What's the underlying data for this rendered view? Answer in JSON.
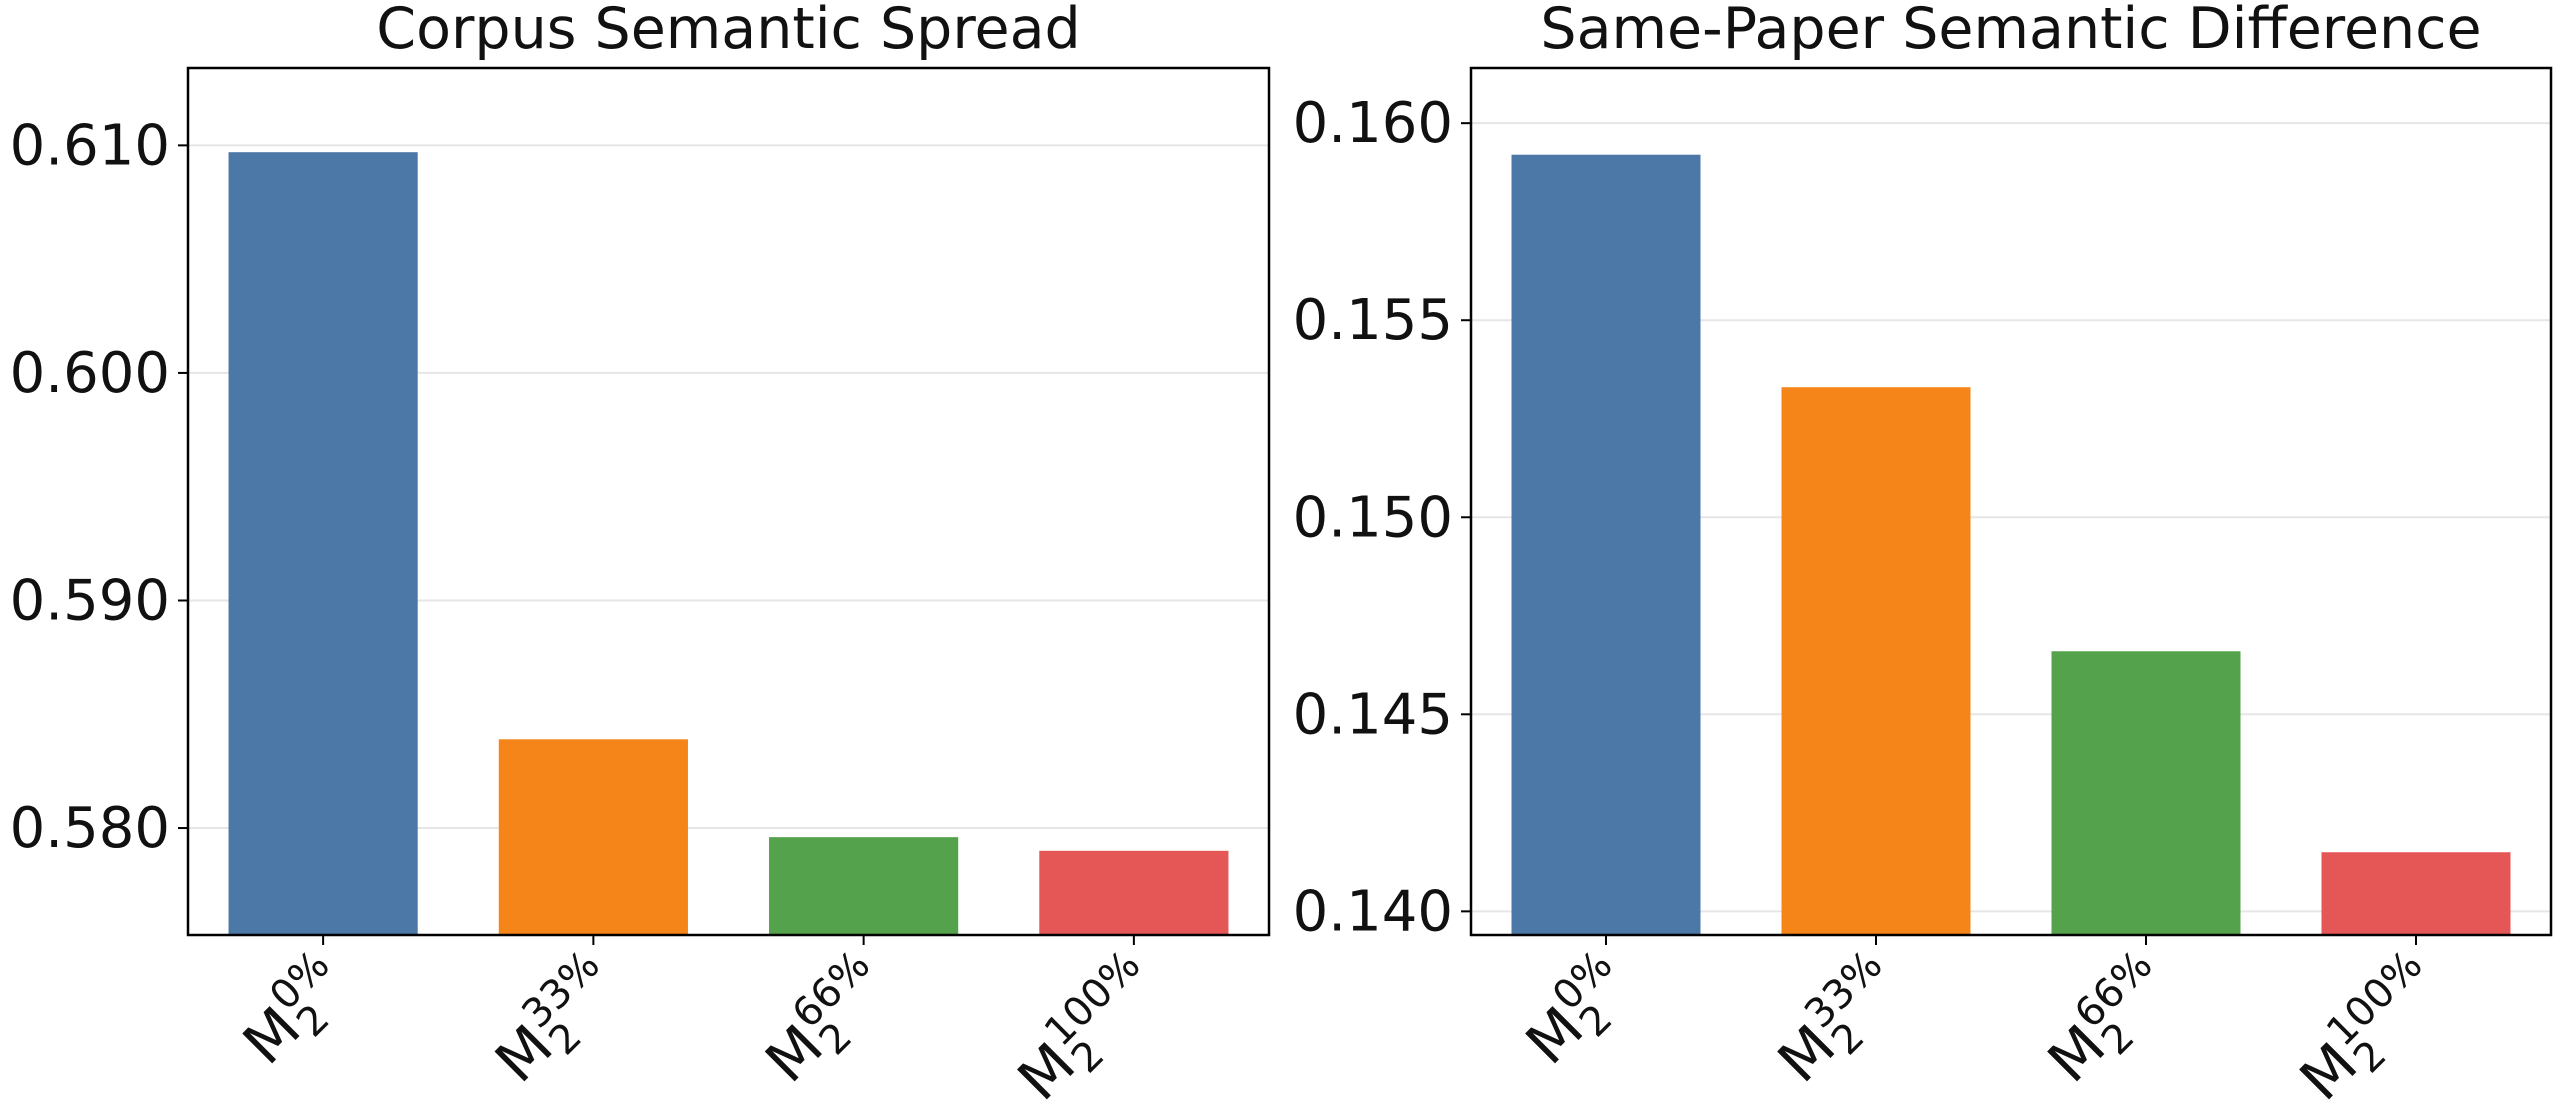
{
  "chart_data": [
    {
      "type": "bar",
      "title": "Corpus Semantic Spread",
      "categories": [
        {
          "base": "M",
          "sub": "2",
          "sup": "0%"
        },
        {
          "base": "M",
          "sub": "2",
          "sup": "33%"
        },
        {
          "base": "M",
          "sub": "2",
          "sup": "66%"
        },
        {
          "base": "M",
          "sub": "2",
          "sup": "100%"
        }
      ],
      "values": [
        0.6097,
        0.5839,
        0.5796,
        0.579
      ],
      "colors": [
        "#4c78a8",
        "#f58518",
        "#54a24b",
        "#e45756"
      ],
      "ylim": [
        0.5753,
        0.6134
      ],
      "yticks": [
        {
          "value": 0.58,
          "label": "0.580"
        },
        {
          "value": 0.59,
          "label": "0.590"
        },
        {
          "value": 0.6,
          "label": "0.600"
        },
        {
          "value": 0.61,
          "label": "0.610"
        }
      ],
      "grid": true
    },
    {
      "type": "bar",
      "title": "Same-Paper Semantic Difference",
      "categories": [
        {
          "base": "M",
          "sub": "2",
          "sup": "0%"
        },
        {
          "base": "M",
          "sub": "2",
          "sup": "33%"
        },
        {
          "base": "M",
          "sub": "2",
          "sup": "66%"
        },
        {
          "base": "M",
          "sub": "2",
          "sup": "100%"
        }
      ],
      "values": [
        0.1592,
        0.1533,
        0.1466,
        0.1415
      ],
      "colors": [
        "#4c78a8",
        "#f58518",
        "#54a24b",
        "#e45756"
      ],
      "ylim": [
        0.1394,
        0.1614
      ],
      "yticks": [
        {
          "value": 0.14,
          "label": "0.140"
        },
        0.145,
        {
          "value": 0.15,
          "label": "0.150"
        },
        0.155,
        {
          "value": 0.16,
          "label": "0.160"
        }
      ],
      "grid": true
    }
  ]
}
